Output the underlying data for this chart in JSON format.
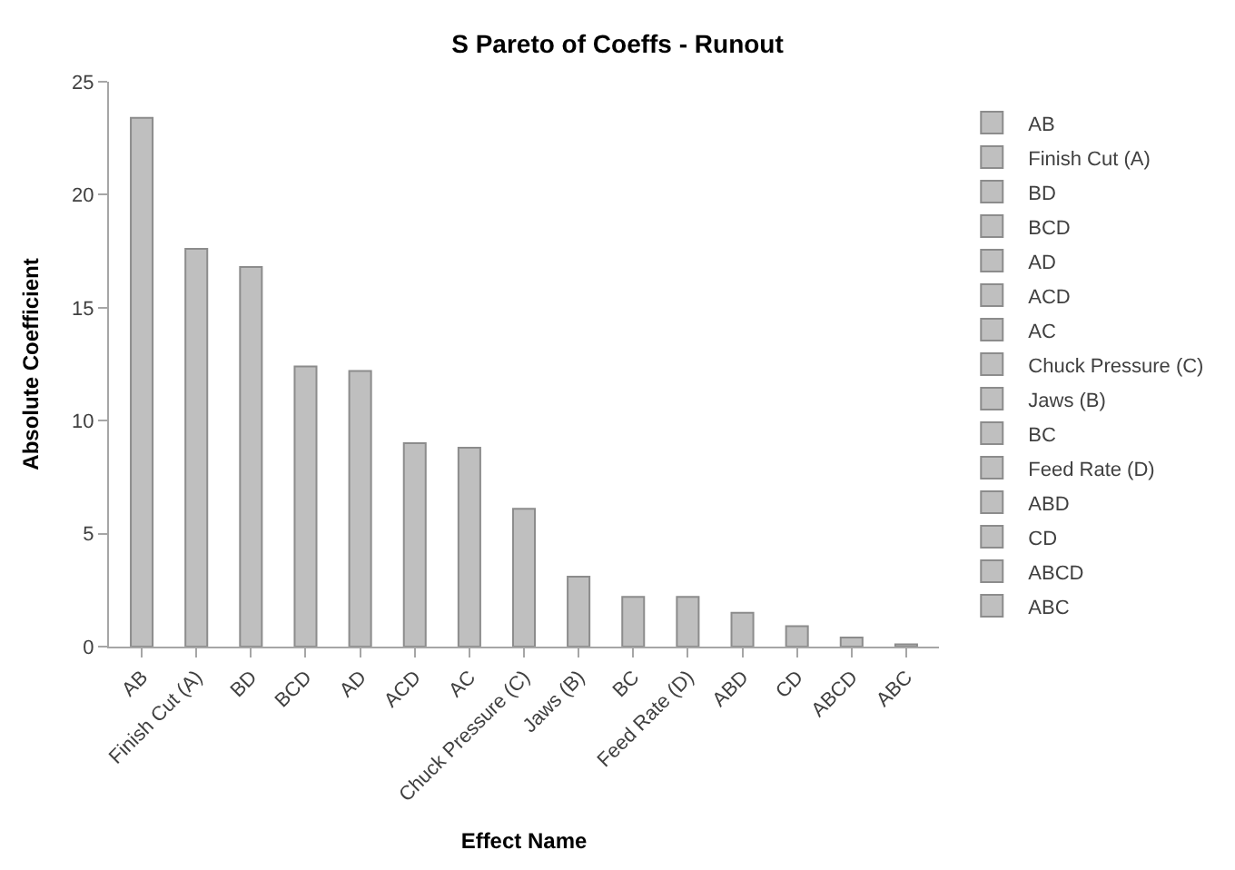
{
  "chart_data": {
    "type": "bar",
    "title": "S Pareto of Coeffs - Runout",
    "xlabel": "Effect Name",
    "ylabel": "Absolute Coefficient",
    "categories": [
      "AB",
      "Finish Cut (A)",
      "BD",
      "BCD",
      "AD",
      "ACD",
      "AC",
      "Chuck Pressure (C)",
      "Jaws (B)",
      "BC",
      "Feed Rate (D)",
      "ABD",
      "CD",
      "ABCD",
      "ABC"
    ],
    "series": [
      {
        "name": "AB",
        "color": "#bfbfbf",
        "values": [
          23.4,
          null,
          null,
          null,
          null,
          null,
          null,
          null,
          null,
          null,
          null,
          null,
          null,
          null,
          null
        ]
      },
      {
        "name": "Finish Cut (A)",
        "color": "#bfbfbf",
        "values": [
          null,
          17.6,
          null,
          null,
          null,
          null,
          null,
          null,
          null,
          null,
          null,
          null,
          null,
          null,
          null
        ]
      },
      {
        "name": "BD",
        "color": "#bfbfbf",
        "values": [
          null,
          null,
          16.8,
          null,
          null,
          null,
          null,
          null,
          null,
          null,
          null,
          null,
          null,
          null,
          null
        ]
      },
      {
        "name": "BCD",
        "color": "#bfbfbf",
        "values": [
          null,
          null,
          null,
          12.4,
          null,
          null,
          null,
          null,
          null,
          null,
          null,
          null,
          null,
          null,
          null
        ]
      },
      {
        "name": "AD",
        "color": "#bfbfbf",
        "values": [
          null,
          null,
          null,
          null,
          12.2,
          null,
          null,
          null,
          null,
          null,
          null,
          null,
          null,
          null,
          null
        ]
      },
      {
        "name": "ACD",
        "color": "#bfbfbf",
        "values": [
          null,
          null,
          null,
          null,
          null,
          9.0,
          null,
          null,
          null,
          null,
          null,
          null,
          null,
          null,
          null
        ]
      },
      {
        "name": "AC",
        "color": "#bfbfbf",
        "values": [
          null,
          null,
          null,
          null,
          null,
          null,
          8.8,
          null,
          null,
          null,
          null,
          null,
          null,
          null,
          null
        ]
      },
      {
        "name": "Chuck Pressure (C)",
        "color": "#bfbfbf",
        "values": [
          null,
          null,
          null,
          null,
          null,
          null,
          null,
          6.1,
          null,
          null,
          null,
          null,
          null,
          null,
          null
        ]
      },
      {
        "name": "Jaws (B)",
        "color": "#bfbfbf",
        "values": [
          null,
          null,
          null,
          null,
          null,
          null,
          null,
          null,
          3.1,
          null,
          null,
          null,
          null,
          null,
          null
        ]
      },
      {
        "name": "BC",
        "color": "#bfbfbf",
        "values": [
          null,
          null,
          null,
          null,
          null,
          null,
          null,
          null,
          null,
          2.2,
          null,
          null,
          null,
          null,
          null
        ]
      },
      {
        "name": "Feed Rate (D)",
        "color": "#bfbfbf",
        "values": [
          null,
          null,
          null,
          null,
          null,
          null,
          null,
          null,
          null,
          null,
          2.2,
          null,
          null,
          null,
          null
        ]
      },
      {
        "name": "ABD",
        "color": "#bfbfbf",
        "values": [
          null,
          null,
          null,
          null,
          null,
          null,
          null,
          null,
          null,
          null,
          null,
          1.5,
          null,
          null,
          null
        ]
      },
      {
        "name": "CD",
        "color": "#bfbfbf",
        "values": [
          null,
          null,
          null,
          null,
          null,
          null,
          null,
          null,
          null,
          null,
          null,
          null,
          0.9,
          null,
          null
        ]
      },
      {
        "name": "ABCD",
        "color": "#bfbfbf",
        "values": [
          null,
          null,
          null,
          null,
          null,
          null,
          null,
          null,
          null,
          null,
          null,
          null,
          null,
          0.4,
          null
        ]
      },
      {
        "name": "ABC",
        "color": "#bfbfbf",
        "values": [
          null,
          null,
          null,
          null,
          null,
          null,
          null,
          null,
          null,
          null,
          null,
          null,
          null,
          null,
          0.1
        ]
      }
    ],
    "ylim": [
      0,
      25
    ],
    "yticks": [
      0,
      5,
      10,
      15,
      20,
      25
    ],
    "legend": "right"
  }
}
